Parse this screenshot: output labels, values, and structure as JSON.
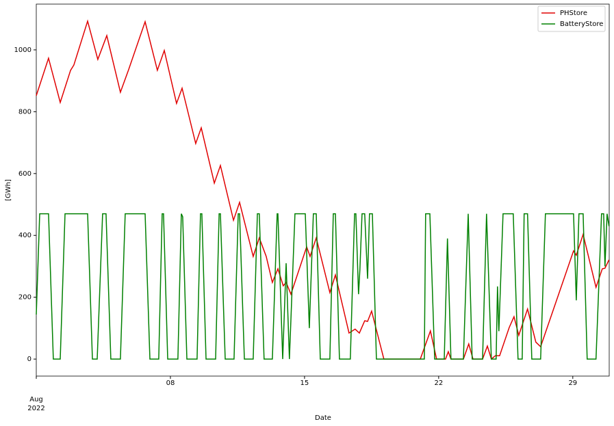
{
  "chart_data": {
    "type": "line",
    "xlabel": "Date",
    "ylabel": "[GWh]",
    "xlim": [
      1,
      30.9
    ],
    "ylim": [
      -55,
      1148
    ],
    "xticks": [
      {
        "value": 1,
        "label": "Aug"
      },
      {
        "value": 8,
        "label": "08"
      },
      {
        "value": 15,
        "label": "15"
      },
      {
        "value": 22,
        "label": "22"
      },
      {
        "value": 29,
        "label": "29"
      }
    ],
    "x_year_label": "2022",
    "yticks": [
      0,
      200,
      400,
      600,
      800,
      1000
    ],
    "grid": false,
    "legend": "upper right",
    "series": [
      {
        "name": "PHStore",
        "color": "#e00000",
        "x": [
          1.0,
          1.64,
          2.25,
          2.79,
          2.96,
          3.68,
          4.21,
          4.68,
          5.39,
          5.82,
          6.68,
          7.32,
          7.68,
          8.32,
          8.61,
          9.32,
          9.61,
          10.29,
          10.61,
          11.29,
          11.61,
          12.32,
          12.64,
          13.0,
          13.32,
          13.61,
          13.89,
          14.04,
          14.29,
          15.11,
          15.29,
          15.61,
          16.32,
          16.61,
          17.32,
          17.64,
          17.86,
          18.14,
          18.29,
          18.5,
          19.14,
          21.04,
          21.57,
          21.89,
          22.36,
          22.5,
          22.64,
          23.29,
          23.57,
          23.79,
          24.29,
          24.54,
          24.75,
          24.96,
          25.18,
          25.68,
          25.93,
          26.18,
          26.64,
          27.07,
          27.32,
          29.04,
          29.18,
          29.54,
          30.21,
          30.54,
          30.68,
          30.89
        ],
        "values": [
          852,
          973,
          830,
          934,
          951,
          1093,
          969,
          1046,
          863,
          936,
          1091,
          934,
          998,
          827,
          876,
          697,
          748,
          569,
          626,
          449,
          507,
          332,
          392,
          332,
          248,
          292,
          237,
          248,
          210,
          363,
          332,
          392,
          215,
          272,
          84,
          97,
          84,
          124,
          122,
          155,
          0,
          0,
          91,
          0,
          0,
          24,
          0,
          0,
          49,
          0,
          0,
          42,
          0,
          11,
          11,
          102,
          137,
          77,
          162,
          55,
          40,
          350,
          336,
          403,
          232,
          292,
          294,
          321
        ]
      },
      {
        "name": "BatteryStore",
        "color": "#008000",
        "x": [
          1.0,
          1.18,
          1.64,
          1.89,
          2.25,
          2.5,
          3.68,
          3.93,
          4.18,
          4.46,
          4.64,
          4.89,
          5.39,
          5.64,
          6.68,
          6.93,
          7.39,
          7.57,
          7.64,
          7.86,
          8.39,
          8.57,
          8.64,
          8.86,
          9.39,
          9.57,
          9.64,
          9.86,
          10.36,
          10.54,
          10.61,
          10.86,
          11.32,
          11.54,
          11.61,
          11.86,
          12.32,
          12.54,
          12.64,
          12.89,
          13.32,
          13.57,
          13.61,
          13.86,
          14.04,
          14.21,
          14.5,
          15.04,
          15.25,
          15.46,
          15.61,
          15.82,
          16.32,
          16.5,
          16.61,
          16.82,
          17.39,
          17.61,
          17.68,
          17.82,
          17.89,
          18.0,
          18.14,
          18.29,
          18.39,
          18.54,
          18.75,
          21.25,
          21.32,
          21.54,
          21.79,
          22.29,
          22.46,
          22.64,
          23.29,
          23.54,
          23.75,
          24.29,
          24.5,
          24.75,
          25.0,
          25.07,
          25.14,
          25.36,
          25.89,
          26.14,
          26.36,
          26.46,
          26.64,
          26.86,
          27.32,
          27.57,
          29.04,
          29.18,
          29.32,
          29.54,
          29.75,
          30.21,
          30.5,
          30.61,
          30.68,
          30.79,
          30.89
        ],
        "values": [
          144,
          470,
          470,
          0,
          0,
          470,
          470,
          0,
          0,
          470,
          470,
          0,
          0,
          470,
          470,
          0,
          0,
          470,
          470,
          0,
          0,
          470,
          460,
          0,
          0,
          470,
          470,
          0,
          0,
          470,
          470,
          0,
          0,
          470,
          470,
          0,
          0,
          470,
          470,
          0,
          0,
          470,
          470,
          0,
          310,
          0,
          470,
          470,
          100,
          470,
          470,
          0,
          0,
          470,
          470,
          0,
          0,
          470,
          470,
          210,
          290,
          470,
          470,
          260,
          470,
          470,
          0,
          0,
          470,
          470,
          0,
          0,
          390,
          0,
          0,
          470,
          0,
          0,
          470,
          0,
          0,
          235,
          90,
          470,
          470,
          0,
          0,
          470,
          470,
          0,
          0,
          470,
          470,
          190,
          470,
          470,
          0,
          0,
          470,
          470,
          300,
          470,
          430
        ]
      }
    ]
  }
}
